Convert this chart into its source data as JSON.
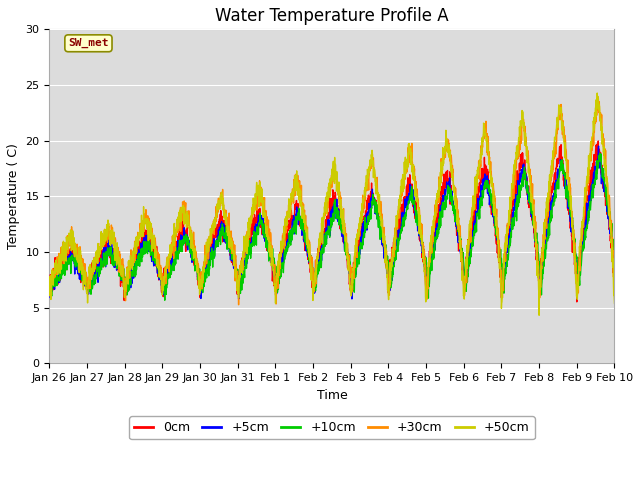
{
  "title": "Water Temperature Profile A",
  "xlabel": "Time",
  "ylabel": "Temperature (C)",
  "ylim": [
    0,
    30
  ],
  "n_days": 15,
  "annotation_text": "SW_met",
  "annotation_color": "#8B0000",
  "annotation_bg": "#FFFFCC",
  "annotation_edge": "#8B8B00",
  "legend_labels": [
    "0cm",
    "+5cm",
    "+10cm",
    "+30cm",
    "+50cm"
  ],
  "line_colors": [
    "#FF0000",
    "#0000FF",
    "#00CC00",
    "#FF8C00",
    "#CCCC00"
  ],
  "bg_color": "#DCDCDC",
  "tick_labels": [
    "Jan 26",
    "Jan 27",
    "Jan 28",
    "Jan 29",
    "Jan 30",
    "Jan 31",
    "Feb 1",
    "Feb 2",
    "Feb 3",
    "Feb 4",
    "Feb 5",
    "Feb 6",
    "Feb 7",
    "Feb 8",
    "Feb 9",
    "Feb 10"
  ],
  "title_fontsize": 12,
  "label_fontsize": 9,
  "tick_fontsize": 8,
  "linewidth": 1.0,
  "figwidth": 6.4,
  "figheight": 4.8,
  "dpi": 100
}
